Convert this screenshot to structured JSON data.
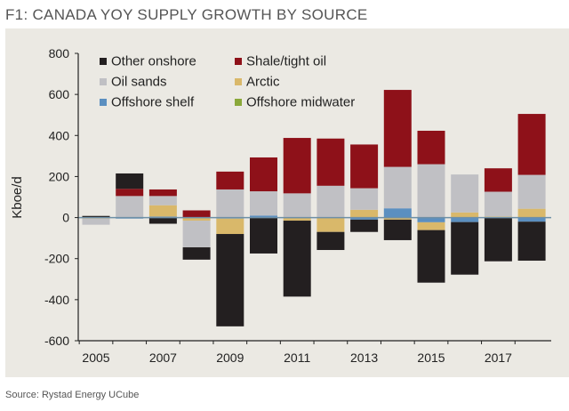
{
  "chart_data": {
    "type": "bar",
    "stacked": true,
    "title": "F1:  CANADA YOY SUPPLY GROWTH BY SOURCE",
    "ylabel": "Kboe/d",
    "xlabel": "",
    "ylim": [
      -600,
      800
    ],
    "yticks": [
      -600,
      -400,
      -200,
      0,
      200,
      400,
      600,
      800
    ],
    "xtick_labels": [
      "2005",
      "2007",
      "2009",
      "2011",
      "2013",
      "2015",
      "2017"
    ],
    "categories": [
      "2005",
      "2006",
      "2007",
      "2008",
      "2009",
      "2010",
      "2011",
      "2012",
      "2013",
      "2014",
      "2015",
      "2016",
      "2017",
      "2018"
    ],
    "legend_position": "top-left",
    "grid": false,
    "background": "#ebe9e3",
    "series": [
      {
        "name": "Offshore shelf",
        "color": "#5b8fc0",
        "values": [
          0,
          -5,
          5,
          0,
          -5,
          10,
          0,
          0,
          -10,
          45,
          -23,
          -22,
          0,
          -20
        ]
      },
      {
        "name": "Arctic",
        "color": "#d9b86a",
        "values": [
          -5,
          0,
          55,
          -15,
          -75,
          0,
          -15,
          -70,
          38,
          -10,
          -38,
          25,
          5,
          43
        ]
      },
      {
        "name": "Oil sands",
        "color": "#c0c0c4",
        "values": [
          -30,
          105,
          45,
          -130,
          137,
          118,
          118,
          155,
          105,
          202,
          260,
          185,
          121,
          165
        ]
      },
      {
        "name": "Shale/tight oil",
        "color": "#8e1119",
        "values": [
          0,
          35,
          32,
          35,
          87,
          165,
          270,
          230,
          213,
          375,
          163,
          0,
          114,
          297
        ]
      },
      {
        "name": "Other onshore",
        "color": "#231f20",
        "values": [
          8,
          75,
          -30,
          -60,
          -450,
          -175,
          -370,
          -88,
          -60,
          -100,
          -256,
          -256,
          -213,
          -190
        ]
      },
      {
        "name": "Offshore midwater",
        "color": "#8aa83a",
        "values": [
          0,
          0,
          0,
          0,
          0,
          0,
          0,
          0,
          0,
          0,
          0,
          0,
          0,
          0
        ]
      }
    ],
    "legend_order": [
      "Other onshore",
      "Shale/tight oil",
      "Oil sands",
      "Arctic",
      "Offshore shelf",
      "Offshore midwater"
    ],
    "source": "Source: Rystad Energy UCube"
  }
}
